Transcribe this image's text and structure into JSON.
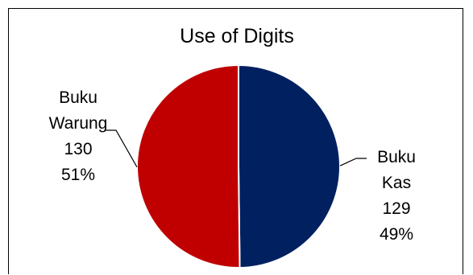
{
  "chart_data": {
    "type": "pie",
    "title": "Use of Digits",
    "categories": [
      "Buku Warung",
      "Buku Kas"
    ],
    "values": [
      130,
      129
    ],
    "percents": [
      "51%",
      "49%"
    ],
    "colors": [
      "#c00000",
      "#002060"
    ],
    "label_lines": [
      [
        "Buku",
        "Warung",
        "130",
        "51%"
      ],
      [
        "Buku",
        "Kas",
        "129",
        "49%"
      ]
    ],
    "legend": "none",
    "data_labels": "outside-with-leader-lines"
  }
}
